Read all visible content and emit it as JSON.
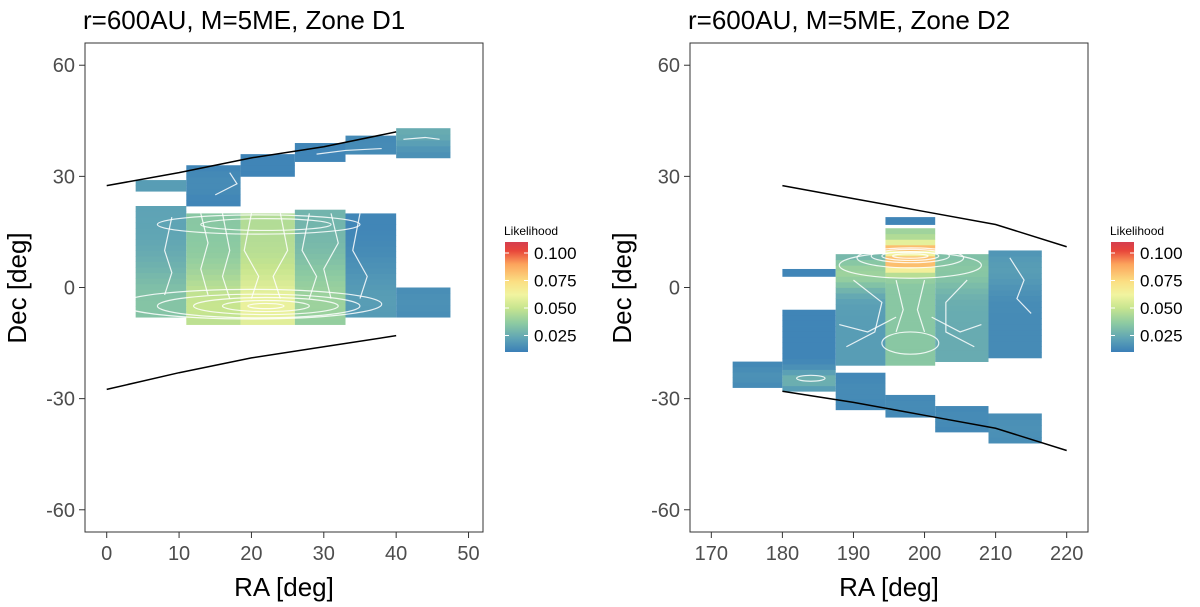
{
  "colors": {
    "scale": [
      "#3a7fb7",
      "#5ea3b5",
      "#8ccaa2",
      "#c7e58f",
      "#f1f4a0",
      "#fbdf83",
      "#fca35c",
      "#e8463a",
      "#d53e4f"
    ],
    "contour": "#ffffff",
    "boundary": "#000000"
  },
  "legend": {
    "title": "Likelihood",
    "min": 0.01,
    "max": 0.11,
    "ticks": [
      {
        "value": 0.1,
        "label": "0.100"
      },
      {
        "value": 0.075,
        "label": "0.075"
      },
      {
        "value": 0.05,
        "label": "0.050"
      },
      {
        "value": 0.025,
        "label": "0.025"
      }
    ]
  },
  "chart_data": [
    {
      "type": "heatmap",
      "title": "r=600AU, M=5ME, Zone D1",
      "xlabel": "RA [deg]",
      "ylabel": "Dec [deg]",
      "xlim": [
        -3,
        52
      ],
      "ylim": [
        -66,
        66
      ],
      "xticks": [
        0,
        10,
        20,
        30,
        40,
        50
      ],
      "yticks": [
        60,
        30,
        0,
        -30,
        -60
      ],
      "cells": [
        {
          "x0": 4,
          "x1": 11,
          "y0": -8,
          "y1": 22,
          "base": 0.022,
          "amp": 0.012,
          "center": -5,
          "width": 12
        },
        {
          "x0": 11,
          "x1": 18.5,
          "y0": -10,
          "y1": 20,
          "base": 0.035,
          "amp": 0.015,
          "center": -5,
          "width": 10
        },
        {
          "x0": 18.5,
          "x1": 26,
          "y0": -10,
          "y1": 20,
          "base": 0.045,
          "amp": 0.015,
          "center": -5,
          "width": 10
        },
        {
          "x0": 26,
          "x1": 33,
          "y0": -10,
          "y1": 21,
          "base": 0.028,
          "amp": 0.012,
          "center": -4,
          "width": 12
        },
        {
          "x0": 33,
          "x1": 40,
          "y0": -8,
          "y1": 20,
          "base": 0.012,
          "amp": 0.008,
          "center": -4,
          "width": 12
        },
        {
          "x0": 40,
          "x1": 47.5,
          "y0": -8,
          "y1": 0,
          "base": 0.012,
          "amp": 0.004,
          "center": -4,
          "width": 6
        },
        {
          "x0": 4,
          "x1": 11,
          "y0": 26,
          "y1": 29,
          "base": 0.02,
          "amp": 0.0,
          "center": 27,
          "width": 3
        },
        {
          "x0": 11,
          "x1": 18.5,
          "y0": 22,
          "y1": 33,
          "base": 0.01,
          "amp": 0.004,
          "center": 28,
          "width": 6
        },
        {
          "x0": 18.5,
          "x1": 26,
          "y0": 30,
          "y1": 36,
          "base": 0.01,
          "amp": 0.002,
          "center": 33,
          "width": 6
        },
        {
          "x0": 26,
          "x1": 33,
          "y0": 34,
          "y1": 39,
          "base": 0.012,
          "amp": 0.0,
          "center": 36,
          "width": 6
        },
        {
          "x0": 33,
          "x1": 40,
          "y0": 36,
          "y1": 41,
          "base": 0.012,
          "amp": 0.002,
          "center": 38,
          "width": 6
        },
        {
          "x0": 40,
          "x1": 47.5,
          "y0": 35,
          "y1": 43,
          "base": 0.015,
          "amp": 0.01,
          "center": 42,
          "width": 4
        }
      ],
      "boundaries": [
        [
          [
            0,
            27.5
          ],
          [
            10,
            31
          ],
          [
            20,
            35
          ],
          [
            30,
            38
          ],
          [
            40,
            42
          ]
        ],
        [
          [
            0,
            -27.5
          ],
          [
            10,
            -23
          ],
          [
            20,
            -19
          ],
          [
            30,
            -16
          ],
          [
            40,
            -13
          ]
        ]
      ],
      "contours": [
        {
          "type": "ellipse",
          "cx": 22,
          "cy": -5,
          "rx": 2.5,
          "ry": 0.7
        },
        {
          "type": "ellipse",
          "cx": 22,
          "cy": -5,
          "rx": 6,
          "ry": 1.5
        },
        {
          "type": "ellipse",
          "cx": 22,
          "cy": -5,
          "rx": 10,
          "ry": 2.3
        },
        {
          "type": "ellipse",
          "cx": 21,
          "cy": -5,
          "rx": 14,
          "ry": 3.2
        },
        {
          "type": "ellipse",
          "cx": 20,
          "cy": -4.5,
          "rx": 18,
          "ry": 4
        },
        {
          "type": "ellipse",
          "cx": 22,
          "cy": 17,
          "rx": 9,
          "ry": 1.6
        },
        {
          "type": "ellipse",
          "cx": 21,
          "cy": 17,
          "rx": 14,
          "ry": 2.6
        },
        {
          "type": "line",
          "points": [
            [
              13,
              20
            ],
            [
              14,
              12
            ],
            [
              13,
              5
            ],
            [
              14,
              -2
            ]
          ]
        },
        {
          "type": "line",
          "points": [
            [
              16,
              20
            ],
            [
              17,
              10
            ],
            [
              16,
              3
            ],
            [
              17,
              -3
            ]
          ]
        },
        {
          "type": "line",
          "points": [
            [
              20,
              20
            ],
            [
              19,
              10
            ],
            [
              21,
              3
            ],
            [
              20,
              -3
            ]
          ]
        },
        {
          "type": "line",
          "points": [
            [
              24,
              20
            ],
            [
              25,
              10
            ],
            [
              23,
              3
            ],
            [
              24,
              -3
            ]
          ]
        },
        {
          "type": "line",
          "points": [
            [
              28,
              20
            ],
            [
              27,
              10
            ],
            [
              29,
              3
            ],
            [
              28,
              -3
            ]
          ]
        },
        {
          "type": "line",
          "points": [
            [
              31,
              20
            ],
            [
              32,
              12
            ],
            [
              30,
              5
            ],
            [
              31,
              -3
            ]
          ]
        },
        {
          "type": "line",
          "points": [
            [
              35,
              20
            ],
            [
              34,
              10
            ],
            [
              36,
              3
            ],
            [
              35,
              -3
            ]
          ]
        },
        {
          "type": "line",
          "points": [
            [
              9,
              19
            ],
            [
              8,
              10
            ],
            [
              9,
              4
            ],
            [
              8,
              -2
            ]
          ]
        },
        {
          "type": "line",
          "points": [
            [
              15,
              25
            ],
            [
              18,
              28
            ],
            [
              17,
              31
            ]
          ]
        },
        {
          "type": "line",
          "points": [
            [
              29,
              36
            ],
            [
              33,
              37
            ],
            [
              38,
              37.5
            ]
          ]
        },
        {
          "type": "line",
          "points": [
            [
              41,
              40
            ],
            [
              44,
              40.5
            ],
            [
              46,
              40
            ]
          ]
        }
      ]
    },
    {
      "type": "heatmap",
      "title": "r=600AU, M=5ME, Zone D2",
      "xlabel": "RA [deg]",
      "ylabel": "Dec [deg]",
      "xlim": [
        167,
        223
      ],
      "ylim": [
        -66,
        66
      ],
      "xticks": [
        170,
        180,
        190,
        200,
        210,
        220
      ],
      "yticks": [
        60,
        30,
        0,
        -30,
        -60
      ],
      "cells": [
        {
          "x0": 173,
          "x1": 180,
          "y0": -27,
          "y1": -20,
          "base": 0.012,
          "amp": 0.004,
          "center": -24,
          "width": 3
        },
        {
          "x0": 180,
          "x1": 187.5,
          "y0": -28,
          "y1": -6,
          "base": 0.012,
          "amp": 0.015,
          "center": -25,
          "width": 3
        },
        {
          "x0": 180,
          "x1": 187.5,
          "y0": 3,
          "y1": 5,
          "base": 0.012,
          "amp": 0.0,
          "center": 4,
          "width": 3
        },
        {
          "x0": 187.5,
          "x1": 194.5,
          "y0": -21,
          "y1": 9,
          "base": 0.02,
          "amp": 0.02,
          "center": 4,
          "width": 5
        },
        {
          "x0": 187.5,
          "x1": 194.5,
          "y0": -33,
          "y1": -23,
          "base": 0.012,
          "amp": 0.002,
          "center": -28,
          "width": 5
        },
        {
          "x0": 194.5,
          "x1": 201.5,
          "y0": -21,
          "y1": 10,
          "base": 0.035,
          "amp": 0.05,
          "center": 7,
          "width": 3
        },
        {
          "x0": 194.5,
          "x1": 201.5,
          "y0": 10,
          "y1": 16,
          "base": 0.04,
          "amp": 0.06,
          "center": 9,
          "width": 3
        },
        {
          "x0": 194.5,
          "x1": 201.5,
          "y0": 17,
          "y1": 19,
          "base": 0.012,
          "amp": 0.0,
          "center": 18,
          "width": 2
        },
        {
          "x0": 194.5,
          "x1": 201.5,
          "y0": -35,
          "y1": -29,
          "base": 0.012,
          "amp": 0.002,
          "center": -32,
          "width": 4
        },
        {
          "x0": 201.5,
          "x1": 209,
          "y0": -20,
          "y1": 9,
          "base": 0.025,
          "amp": 0.01,
          "center": 5,
          "width": 6
        },
        {
          "x0": 201.5,
          "x1": 209,
          "y0": -39,
          "y1": -32,
          "base": 0.012,
          "amp": 0.002,
          "center": -35,
          "width": 4
        },
        {
          "x0": 209,
          "x1": 216.5,
          "y0": -19,
          "y1": 10,
          "base": 0.014,
          "amp": 0.006,
          "center": 5,
          "width": 6
        },
        {
          "x0": 209,
          "x1": 216.5,
          "y0": -42,
          "y1": -34,
          "base": 0.014,
          "amp": 0.002,
          "center": -38,
          "width": 4
        }
      ],
      "boundaries": [
        [
          [
            180,
            27.5
          ],
          [
            190,
            24
          ],
          [
            200,
            20.5
          ],
          [
            210,
            17
          ],
          [
            220,
            11
          ]
        ],
        [
          [
            180,
            -28
          ],
          [
            190,
            -31
          ],
          [
            200,
            -34.5
          ],
          [
            210,
            -38
          ],
          [
            220,
            -44
          ]
        ]
      ],
      "contours": [
        {
          "type": "ellipse",
          "cx": 198,
          "cy": 8.5,
          "rx": 2.5,
          "ry": 0.6
        },
        {
          "type": "ellipse",
          "cx": 198,
          "cy": 8.5,
          "rx": 4,
          "ry": 1.2
        },
        {
          "type": "ellipse",
          "cx": 198,
          "cy": 8.5,
          "rx": 5.5,
          "ry": 1.8
        },
        {
          "type": "ellipse",
          "cx": 198,
          "cy": 8,
          "rx": 7.5,
          "ry": 2.7
        },
        {
          "type": "ellipse",
          "cx": 198,
          "cy": 6,
          "rx": 10,
          "ry": 3.5
        },
        {
          "type": "ellipse",
          "cx": 184,
          "cy": -24.5,
          "rx": 2,
          "ry": 0.8
        },
        {
          "type": "ellipse",
          "cx": 198,
          "cy": -15,
          "rx": 4,
          "ry": 3
        },
        {
          "type": "line",
          "points": [
            [
              190,
              2
            ],
            [
              194,
              -4
            ],
            [
              193,
              -12
            ],
            [
              189,
              -16
            ]
          ]
        },
        {
          "type": "line",
          "points": [
            [
              206,
              2
            ],
            [
              203,
              -4
            ],
            [
              203,
              -12
            ],
            [
              207,
              -16
            ]
          ]
        },
        {
          "type": "line",
          "points": [
            [
              196,
              2
            ],
            [
              197,
              -6
            ],
            [
              196,
              -12
            ]
          ]
        },
        {
          "type": "line",
          "points": [
            [
              200,
              2
            ],
            [
              199,
              -6
            ],
            [
              200,
              -12
            ]
          ]
        },
        {
          "type": "line",
          "points": [
            [
              188,
              -10
            ],
            [
              192,
              -12
            ],
            [
              196,
              -8
            ]
          ]
        },
        {
          "type": "line",
          "points": [
            [
              208,
              -10
            ],
            [
              205,
              -12
            ],
            [
              201,
              -8
            ]
          ]
        },
        {
          "type": "line",
          "points": [
            [
              212,
              8
            ],
            [
              214,
              2
            ],
            [
              213,
              -3
            ],
            [
              215,
              -7
            ]
          ]
        }
      ]
    }
  ]
}
